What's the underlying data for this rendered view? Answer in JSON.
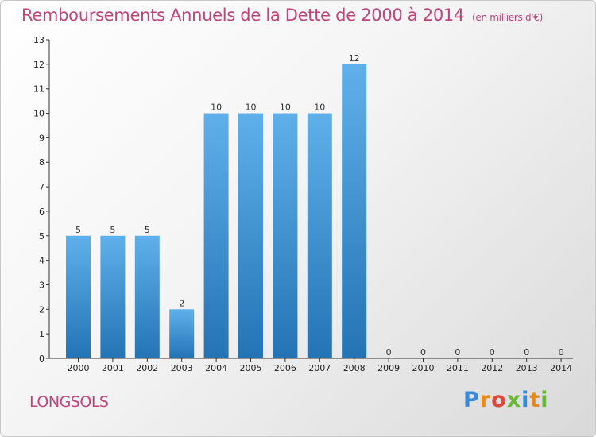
{
  "title": "Remboursements Annuels de la Dette de 2000 à 2014",
  "unit_note": "(en milliers d'€)",
  "commune": "LONGSOLS",
  "logo": [
    "P",
    "r",
    "o",
    "x",
    "i",
    "t",
    "i"
  ],
  "colors": {
    "title": "#c0437a",
    "bar_top": "#5fb0ea",
    "bar_bottom": "#2473b5"
  },
  "chart_data": {
    "type": "bar",
    "title": "Remboursements Annuels de la Dette de 2000 à 2014",
    "categories": [
      "2000",
      "2001",
      "2002",
      "2003",
      "2004",
      "2005",
      "2006",
      "2007",
      "2008",
      "2009",
      "2010",
      "2011",
      "2012",
      "2013",
      "2014"
    ],
    "values": [
      5,
      5,
      5,
      2,
      10,
      10,
      10,
      10,
      12,
      0,
      0,
      0,
      0,
      0,
      0
    ],
    "ylim": [
      0,
      13
    ],
    "yticks": [
      0,
      1,
      2,
      3,
      4,
      5,
      6,
      7,
      8,
      9,
      10,
      11,
      12,
      13
    ],
    "grid": false
  }
}
